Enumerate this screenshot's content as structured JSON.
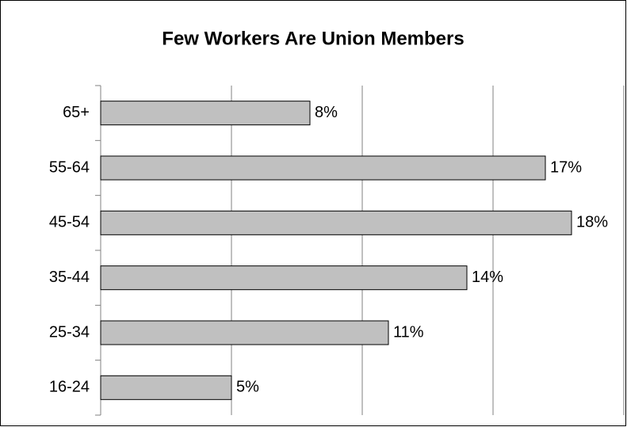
{
  "chart_data": {
    "type": "bar",
    "orientation": "horizontal",
    "title": "Few Workers Are Union Members",
    "categories": [
      "65+",
      "55-64",
      "45-54",
      "35-44",
      "25-34",
      "16-24"
    ],
    "values": [
      8,
      17,
      18,
      14,
      11,
      5
    ],
    "value_labels": [
      "8%",
      "17%",
      "18%",
      "14%",
      "11%",
      "5%"
    ],
    "color": "#c0c0c0",
    "xlim": [
      0,
      20
    ],
    "xticks": [
      0,
      5,
      10,
      15,
      20
    ],
    "grid": true
  }
}
